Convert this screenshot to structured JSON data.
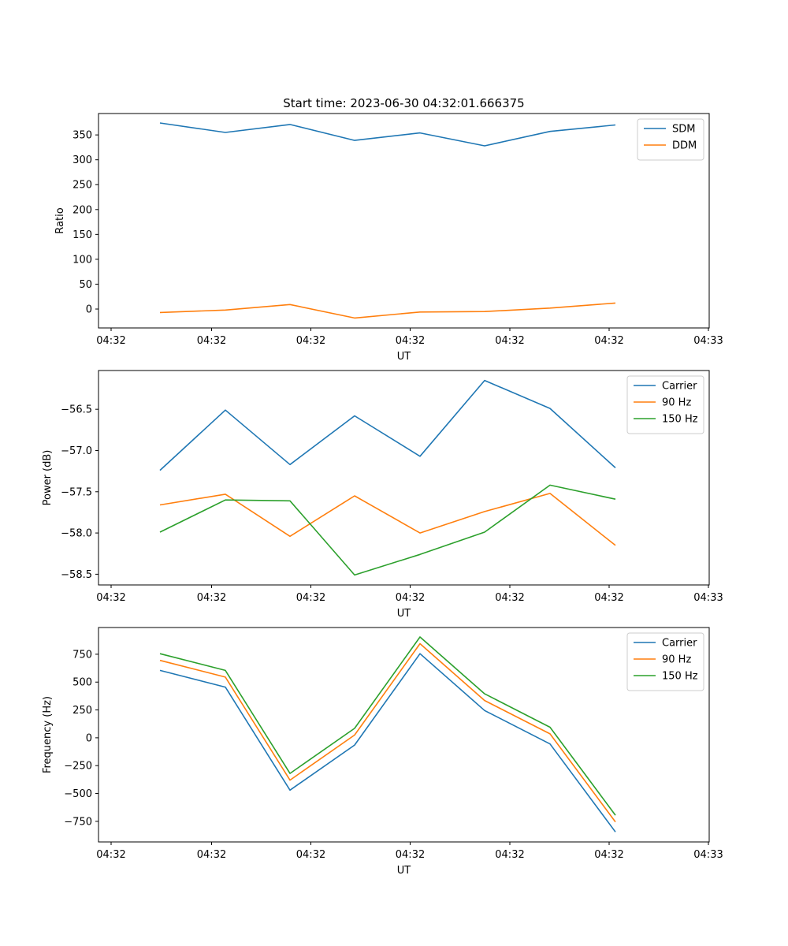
{
  "title": "Start time: 2023-06-30 04:32:01.666375",
  "colors": {
    "blue": "#1f77b4",
    "orange": "#ff7f0e",
    "green": "#2ca02c"
  },
  "chart_data": [
    {
      "type": "line",
      "xlabel": "UT",
      "ylabel": "Ratio",
      "x_ticks": [
        "04:32",
        "04:32",
        "04:32",
        "04:32",
        "04:32",
        "04:32",
        "04:32"
      ],
      "x_tick_last": "04:33",
      "y_ticks": [
        0,
        50,
        100,
        150,
        200,
        250,
        300,
        350
      ],
      "ylim": [
        -38,
        393
      ],
      "legend": "top-right",
      "series": [
        {
          "name": "SDM",
          "color": "#1f77b4",
          "values": [
            374,
            355,
            371,
            339,
            354,
            328,
            357,
            370
          ]
        },
        {
          "name": "DDM",
          "color": "#ff7f0e",
          "values": [
            -7,
            -2,
            9,
            -18,
            -6,
            -5,
            2,
            12
          ]
        }
      ]
    },
    {
      "type": "line",
      "xlabel": "UT",
      "ylabel": "Power (dB)",
      "x_ticks": [
        "04:32",
        "04:32",
        "04:32",
        "04:32",
        "04:32",
        "04:32",
        "04:32"
      ],
      "x_tick_last": "04:33",
      "y_ticks": [
        -56.5,
        -57.0,
        -57.5,
        -58.0,
        -58.5
      ],
      "ylim": [
        -58.63,
        -56.03
      ],
      "legend": "top-right",
      "series": [
        {
          "name": "Carrier",
          "color": "#1f77b4",
          "values": [
            -57.24,
            -56.51,
            -57.17,
            -56.58,
            -57.07,
            -56.15,
            -56.49,
            -57.21
          ]
        },
        {
          "name": "90 Hz",
          "color": "#ff7f0e",
          "values": [
            -57.66,
            -57.53,
            -58.04,
            -57.55,
            -58.0,
            -57.74,
            -57.52,
            -58.15
          ]
        },
        {
          "name": "150 Hz",
          "color": "#2ca02c",
          "values": [
            -57.99,
            -57.6,
            -57.61,
            -58.51,
            -58.26,
            -57.99,
            -57.42,
            -57.59
          ]
        }
      ]
    },
    {
      "type": "line",
      "xlabel": "UT",
      "ylabel": "Frequency (Hz)",
      "x_ticks": [
        "04:32",
        "04:32",
        "04:32",
        "04:32",
        "04:32",
        "04:32",
        "04:32"
      ],
      "x_tick_last": "04:33",
      "y_ticks": [
        750,
        500,
        250,
        0,
        -250,
        -500,
        -750
      ],
      "ylim": [
        -935,
        990
      ],
      "legend": "top-right",
      "series": [
        {
          "name": "Carrier",
          "color": "#1f77b4",
          "values": [
            605,
            455,
            -470,
            -65,
            755,
            245,
            -55,
            -845
          ]
        },
        {
          "name": "90 Hz",
          "color": "#ff7f0e",
          "values": [
            695,
            545,
            -380,
            25,
            845,
            335,
            35,
            -755
          ]
        },
        {
          "name": "150 Hz",
          "color": "#2ca02c",
          "values": [
            755,
            605,
            -320,
            85,
            905,
            395,
            95,
            -695
          ]
        }
      ]
    }
  ]
}
